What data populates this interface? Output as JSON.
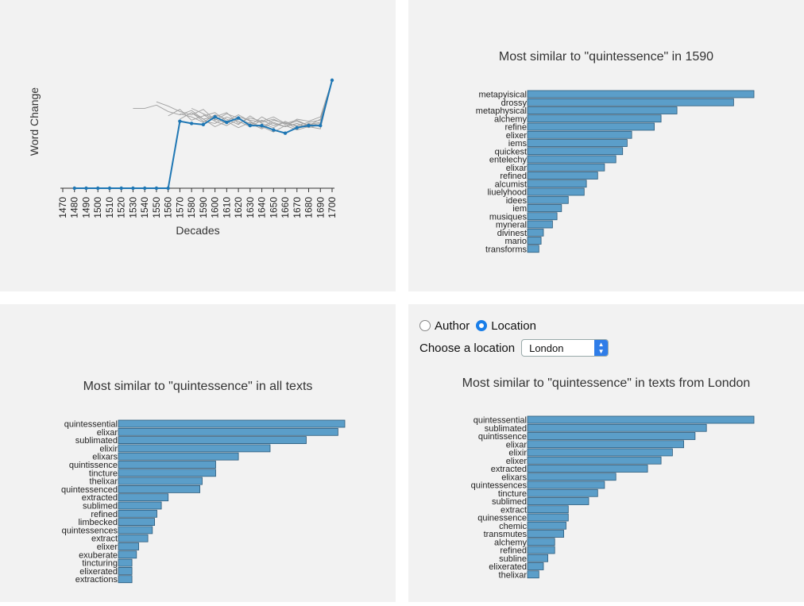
{
  "line_chart": {
    "ylabel": "Word Change",
    "xlabel": "Decades"
  },
  "chart_data": [
    {
      "type": "line",
      "xlabel": "Decades",
      "ylabel": "Word Change",
      "x": [
        1470,
        1480,
        1490,
        1500,
        1510,
        1520,
        1530,
        1540,
        1550,
        1560,
        1570,
        1580,
        1590,
        1600,
        1610,
        1620,
        1630,
        1640,
        1650,
        1660,
        1670,
        1680,
        1690,
        1700
      ],
      "series": [
        {
          "values": [
            null,
            0,
            0,
            0,
            0,
            0,
            0,
            0,
            0,
            0,
            0.62,
            0.6,
            0.59,
            0.66,
            0.61,
            0.65,
            0.58,
            0.58,
            0.54,
            0.51,
            0.56,
            0.58,
            0.58,
            1.0
          ]
        }
      ],
      "background_series": [
        [
          null,
          null,
          null,
          null,
          null,
          null,
          0.74,
          0.74,
          0.77,
          0.71,
          0.68,
          0.72,
          0.64,
          0.66,
          0.7,
          0.6,
          0.65,
          0.62,
          0.66,
          0.6,
          0.63,
          0.58,
          0.6,
          1.0
        ],
        [
          null,
          null,
          null,
          null,
          null,
          null,
          null,
          null,
          0.8,
          0.76,
          0.71,
          0.68,
          0.73,
          0.63,
          0.69,
          0.65,
          0.58,
          0.66,
          0.6,
          0.57,
          0.64,
          0.62,
          0.66,
          1.0
        ],
        [
          null,
          null,
          null,
          null,
          null,
          null,
          null,
          null,
          null,
          0.67,
          0.73,
          0.63,
          0.67,
          0.7,
          0.62,
          0.68,
          0.62,
          0.56,
          0.63,
          0.6,
          0.58,
          0.61,
          0.63,
          1.0
        ],
        [
          null,
          null,
          null,
          null,
          null,
          null,
          null,
          null,
          null,
          null,
          0.69,
          0.66,
          0.61,
          0.68,
          0.64,
          0.59,
          0.67,
          0.6,
          0.56,
          0.62,
          0.57,
          0.59,
          0.61,
          1.0
        ],
        [
          null,
          null,
          null,
          null,
          null,
          null,
          null,
          null,
          null,
          null,
          null,
          0.7,
          0.62,
          0.6,
          0.66,
          0.62,
          0.57,
          0.63,
          0.58,
          0.61,
          0.55,
          0.6,
          0.57,
          1.0
        ],
        [
          null,
          null,
          null,
          null,
          null,
          null,
          null,
          null,
          null,
          null,
          null,
          null,
          0.68,
          0.62,
          0.58,
          0.64,
          0.6,
          0.55,
          0.61,
          0.57,
          0.6,
          0.56,
          0.59,
          1.0
        ],
        [
          null,
          null,
          null,
          null,
          null,
          null,
          null,
          null,
          null,
          null,
          0.64,
          0.7,
          0.64,
          0.57,
          0.62,
          0.56,
          0.61,
          0.57,
          0.52,
          0.58,
          0.54,
          0.57,
          0.55,
          1.0
        ],
        [
          null,
          null,
          null,
          null,
          null,
          null,
          null,
          null,
          null,
          null,
          null,
          0.74,
          0.69,
          0.64,
          0.6,
          0.66,
          0.63,
          0.61,
          0.64,
          0.59,
          0.62,
          0.58,
          0.64,
          1.0
        ]
      ]
    },
    {
      "type": "bar",
      "orientation": "horizontal",
      "title": "Most similar to \"quintessence\" in 1590",
      "categories": [
        "metapyisical",
        "drossy",
        "metaphysical",
        "alchemy",
        "refine",
        "elixer",
        "iems",
        "quickest",
        "entelechy",
        "elixar",
        "refined",
        "alcumist",
        "liuelyhood",
        "idees",
        "iem",
        "musiques",
        "myneral",
        "divinest",
        "mario",
        "transforms"
      ],
      "values": [
        1.0,
        0.91,
        0.66,
        0.59,
        0.56,
        0.46,
        0.44,
        0.42,
        0.39,
        0.34,
        0.31,
        0.26,
        0.25,
        0.18,
        0.15,
        0.13,
        0.11,
        0.07,
        0.06,
        0.05
      ]
    },
    {
      "type": "bar",
      "orientation": "horizontal",
      "title": "Most similar to \"quintessence\" in all texts",
      "categories": [
        "quintessential",
        "elixar",
        "sublimated",
        "elixir",
        "elixars",
        "quintissence",
        "tincture",
        "thelixar",
        "quintessenced",
        "extracted",
        "sublimed",
        "refined",
        "limbecked",
        "quintessences",
        "extract",
        "elixer",
        "exuberate",
        "tincturing",
        "elixerated",
        "extractions"
      ],
      "values": [
        1.0,
        0.97,
        0.83,
        0.67,
        0.53,
        0.43,
        0.43,
        0.37,
        0.36,
        0.22,
        0.19,
        0.17,
        0.16,
        0.15,
        0.13,
        0.09,
        0.08,
        0.06,
        0.06,
        0.06
      ]
    },
    {
      "type": "bar",
      "orientation": "horizontal",
      "title": "Most similar to \"quintessence\" in texts from London",
      "categories": [
        "quintessential",
        "sublimated",
        "quintissence",
        "elixar",
        "elixir",
        "elixer",
        "extracted",
        "elixars",
        "quintessences",
        "tincture",
        "sublimed",
        "extract",
        "quinessence",
        "chemic",
        "transmutes",
        "alchemy",
        "refined",
        "subline",
        "elixerated",
        "thelixar"
      ],
      "values": [
        1.0,
        0.79,
        0.74,
        0.69,
        0.64,
        0.59,
        0.53,
        0.39,
        0.34,
        0.31,
        0.27,
        0.18,
        0.18,
        0.17,
        0.16,
        0.12,
        0.12,
        0.09,
        0.07,
        0.05
      ]
    }
  ],
  "controls": {
    "radio_author": "Author",
    "radio_location": "Location",
    "selected_mode": "Location",
    "choose_label": "Choose a location",
    "location_value": "London"
  },
  "colors": {
    "panel_bg": "#f2f2f2",
    "bar_fill": "#5b9ec9",
    "bar_stroke": "#2c5a7a",
    "main_line": "#1f77b4",
    "background_line": "#a0a0a0",
    "radio_accent": "#1a7ee8"
  }
}
